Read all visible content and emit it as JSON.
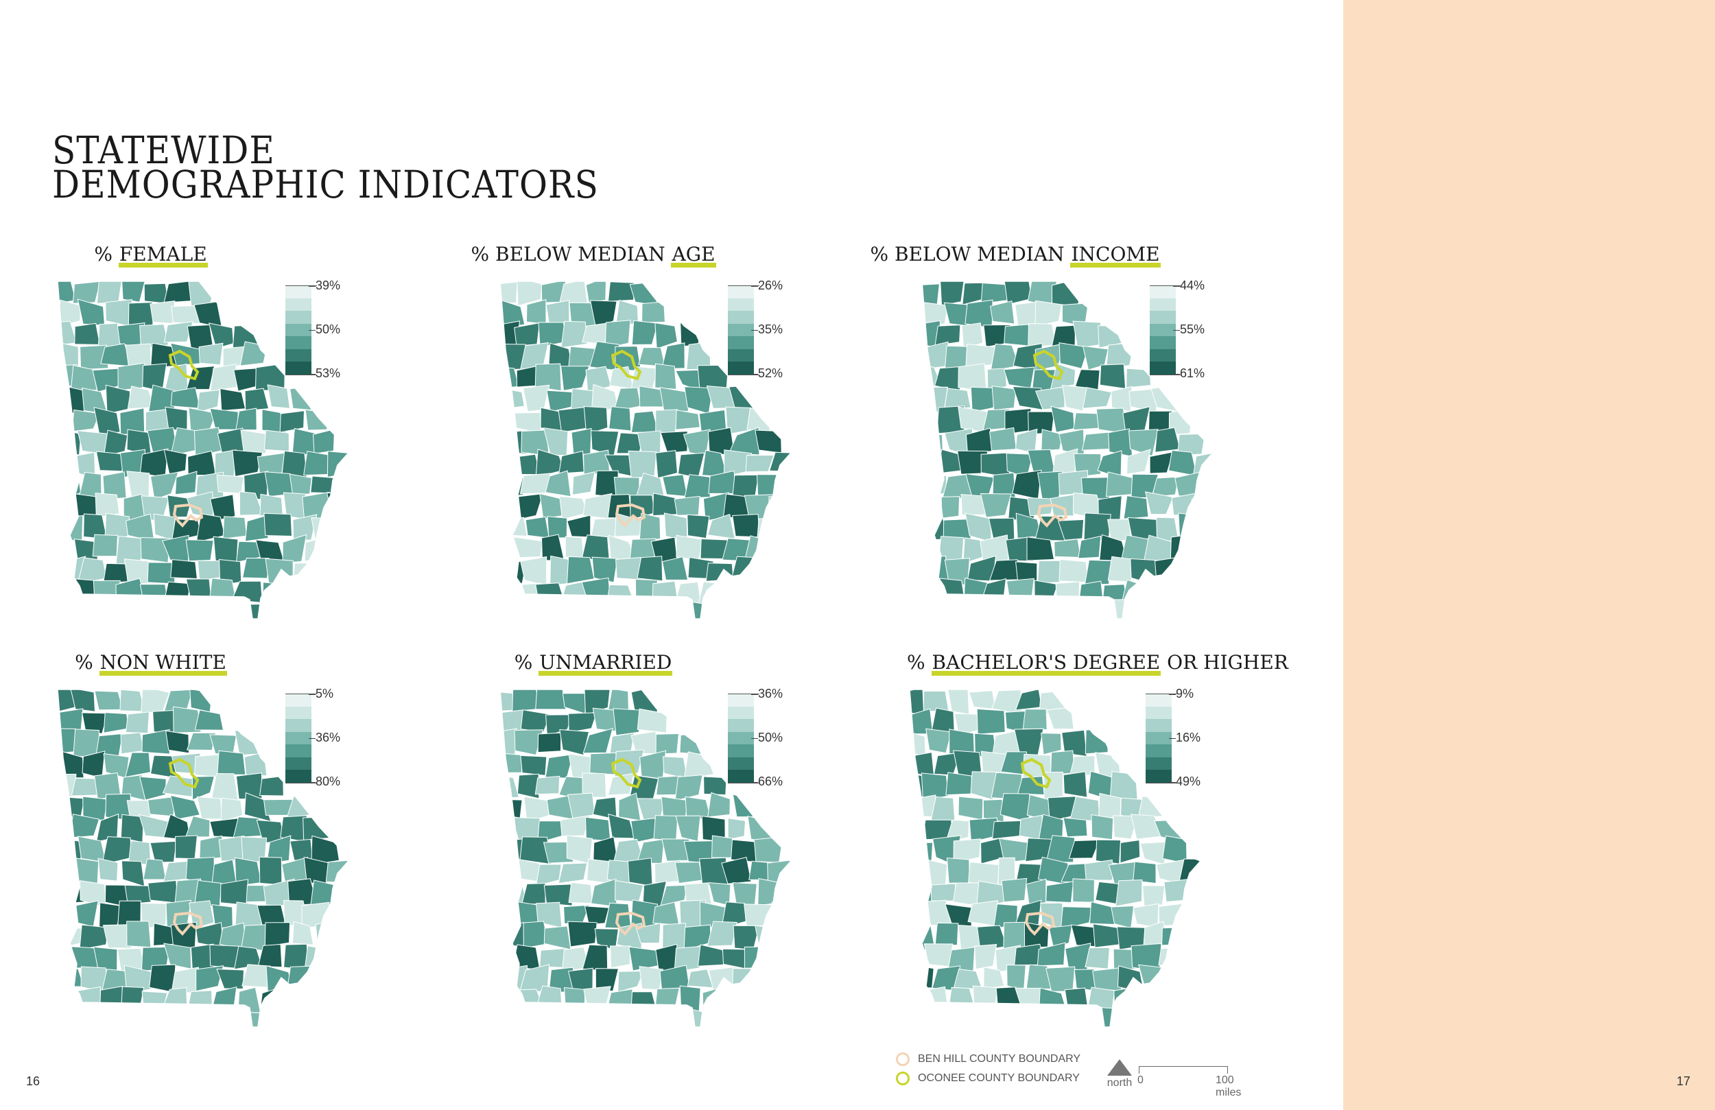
{
  "title": {
    "line1": "STATEWIDE",
    "line2": "DEMOGRAPHIC INDICATORS"
  },
  "colors": {
    "ramp": [
      "#e8f3f1",
      "#cde6e1",
      "#a8d2cb",
      "#7cb8ae",
      "#559c91",
      "#387d72",
      "#1e5e54"
    ],
    "highlight": "#c8d42a",
    "ben_hill": "#f2d4b5",
    "oconee": "#c8d42a",
    "side_panel": "#fcdfc3"
  },
  "maps": [
    {
      "id": "female",
      "prefix": "% ",
      "highlight": "FEMALE",
      "suffix": "",
      "legend": [
        "39%",
        "50%",
        "53%"
      ],
      "bias": 0.62,
      "seed": 11
    },
    {
      "id": "age",
      "prefix": "% BELOW MEDIAN ",
      "highlight": "AGE",
      "suffix": "",
      "legend": [
        "26%",
        "35%",
        "52%"
      ],
      "bias": 0.52,
      "seed": 23
    },
    {
      "id": "income",
      "prefix": "% BELOW MEDIAN ",
      "highlight": "INCOME",
      "suffix": "",
      "legend": [
        "44%",
        "55%",
        "61%"
      ],
      "bias": 0.5,
      "seed": 37
    },
    {
      "id": "nonwhite",
      "prefix": "% ",
      "highlight": "NON WHITE",
      "suffix": "",
      "legend": [
        "5%",
        "36%",
        "80%"
      ],
      "bias": 0.6,
      "seed": 41
    },
    {
      "id": "unmarried",
      "prefix": "% ",
      "highlight": "UNMARRIED",
      "suffix": "",
      "legend": [
        "36%",
        "50%",
        "66%"
      ],
      "bias": 0.5,
      "seed": 53
    },
    {
      "id": "bachelors",
      "prefix": "% ",
      "highlight": "BACHELOR'S DEGREE",
      "suffix": " OR HIGHER",
      "legend": [
        "9%",
        "16%",
        "49%"
      ],
      "bias": 0.45,
      "seed": 67
    }
  ],
  "legend": {
    "ben_hill": "BEN HILL COUNTY BOUNDARY",
    "oconee": "OCONEE COUNTY BOUNDARY",
    "north": "north",
    "scale_zero": "0",
    "scale_end": "100 miles"
  },
  "page_numbers": {
    "left": "16",
    "right": "17"
  }
}
